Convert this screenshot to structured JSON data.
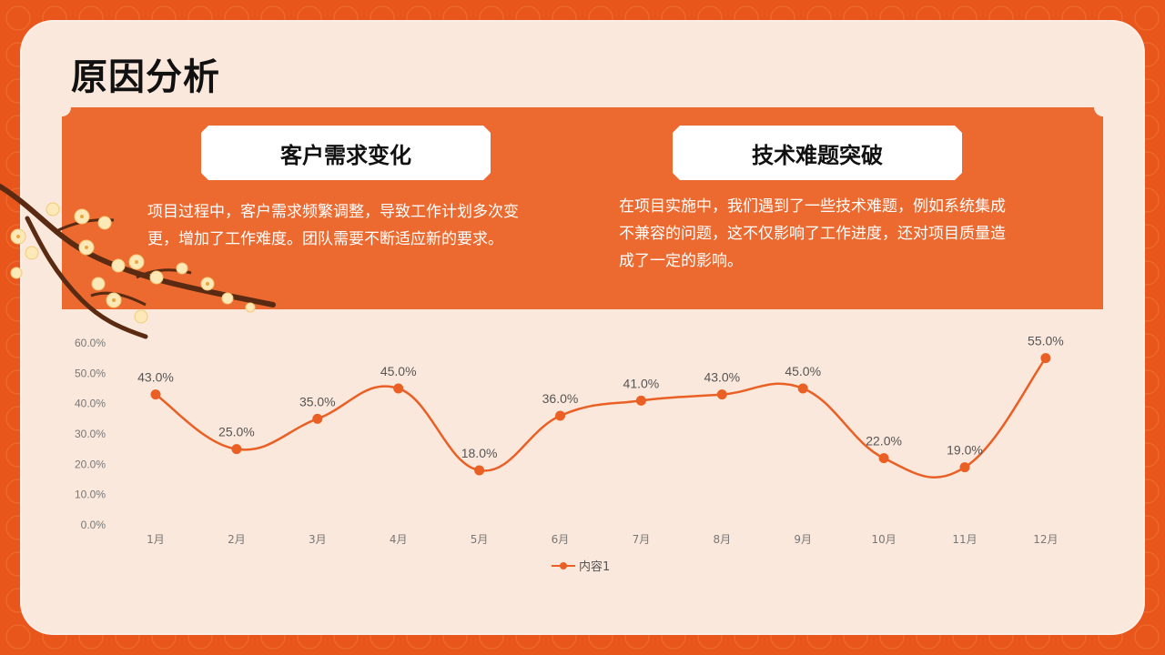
{
  "page": {
    "title": "原因分析"
  },
  "cards": [
    {
      "heading": "客户需求变化",
      "body": "项目过程中，客户需求频繁调整，导致工作计划多次变更，增加了工作难度。团队需要不断适应新的要求。"
    },
    {
      "heading": "技术难题突破",
      "body": "在项目实施中，我们遇到了一些技术难题，例如系统集成不兼容的问题，这不仅影响了工作进度，还对项目质量造成了一定的影响。"
    }
  ],
  "colors": {
    "accent": "#ea5f24",
    "background": "#fbe8dc",
    "banner": "#ec6a30"
  },
  "chart_data": {
    "type": "line",
    "categories": [
      "1月",
      "2月",
      "3月",
      "4月",
      "5月",
      "6月",
      "7月",
      "8月",
      "9月",
      "10月",
      "11月",
      "12月"
    ],
    "series": [
      {
        "name": "内容1",
        "values": [
          43.0,
          25.0,
          35.0,
          45.0,
          18.0,
          36.0,
          41.0,
          43.0,
          45.0,
          22.0,
          19.0,
          55.0
        ]
      }
    ],
    "data_labels": [
      "43.0%",
      "25.0%",
      "35.0%",
      "45.0%",
      "18.0%",
      "36.0%",
      "41.0%",
      "43.0%",
      "45.0%",
      "22.0%",
      "19.0%",
      "55.0%"
    ],
    "ylim": [
      0,
      60
    ],
    "y_ticks": [
      "0.0%",
      "10.0%",
      "20.0%",
      "30.0%",
      "40.0%",
      "50.0%",
      "60.0%"
    ],
    "grid": false,
    "smooth": true,
    "legend_position": "bottom"
  }
}
